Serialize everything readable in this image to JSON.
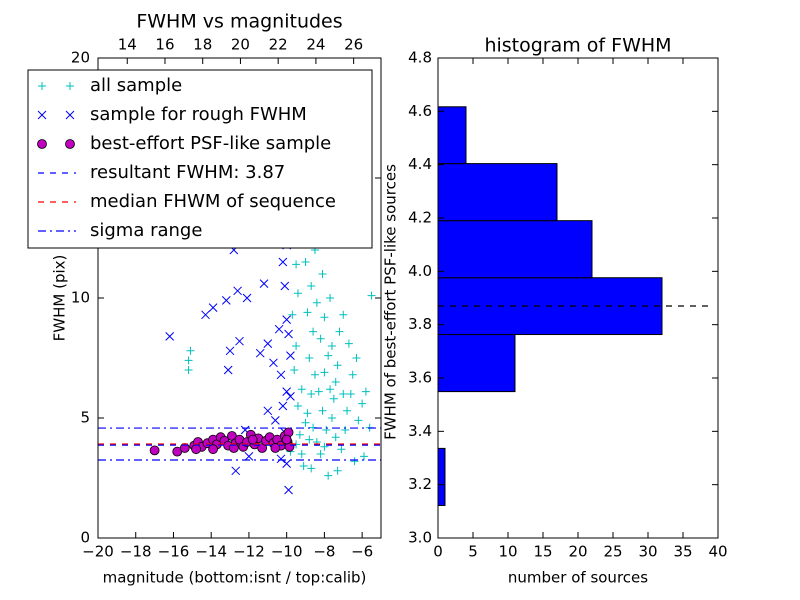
{
  "chart_data": [
    {
      "type": "scatter",
      "title": "FWHM vs magnitudes",
      "x_label": "magnitude (bottom:isnt / top:calib)",
      "y_label": "FWHM (pix)",
      "xlim": [
        -20,
        -5
      ],
      "xticks": [
        {
          "value": -20,
          "label": "−20"
        },
        {
          "value": -18,
          "label": "−18"
        },
        {
          "value": -16,
          "label": "−16"
        },
        {
          "value": -14,
          "label": "−14"
        },
        {
          "value": -12,
          "label": "−12"
        },
        {
          "value": -10,
          "label": "−10"
        },
        {
          "value": -8,
          "label": "−8"
        },
        {
          "value": -6,
          "label": "−6"
        }
      ],
      "x2lim": [
        12.45,
        27.45
      ],
      "x2ticks": [
        14,
        16,
        18,
        20,
        22,
        24,
        26
      ],
      "ylim": [
        0,
        20
      ],
      "yticks": [
        0,
        5,
        10,
        15,
        20
      ],
      "legend": "upper left",
      "series": [
        {
          "name": "all sample",
          "color": "#00bfbf",
          "marker": "+",
          "x": [
            -15.2,
            -15.2,
            -15.1,
            -5.5,
            -9.8,
            -9.5,
            -9.3,
            -9.0,
            -9.4,
            -9.2,
            -9.6,
            -9.5,
            -9.7,
            -9.4,
            -9.5,
            -9.3,
            -9.0,
            -9.6,
            -8.8,
            -8.5,
            -8.7,
            -8.9,
            -8.6,
            -8.8,
            -8.5,
            -8.7,
            -8.9,
            -8.6,
            -8.4,
            -8.2,
            -8.0,
            -7.9,
            -8.1,
            -8.3,
            -8.0,
            -7.8,
            -8.2,
            -8.0,
            -7.7,
            -8.1,
            -7.9,
            -8.3,
            -7.6,
            -7.5,
            -7.4,
            -7.3,
            -7.6,
            -7.2,
            -7.0,
            -7.4,
            -7.1,
            -6.9,
            -6.8,
            -6.6,
            -6.5,
            -6.3,
            -6.7,
            -6.2,
            -6.0,
            -5.8,
            -5.6,
            -5.9,
            -6.4,
            -7.8,
            -7.3,
            -9.1,
            -8.7,
            -8.3,
            -7.9,
            -9.0,
            -8.4,
            -7.7,
            -7.0,
            -8.8,
            -9.2
          ],
          "y": [
            7.0,
            7.4,
            7.8,
            10.1,
            3.6,
            3.9,
            4.3,
            4.8,
            5.5,
            6.2,
            7.0,
            8.0,
            9.3,
            10.2,
            11.4,
            12.6,
            13.8,
            14.6,
            15.2,
            12.0,
            10.5,
            9.4,
            8.6,
            7.5,
            6.8,
            6.0,
            5.2,
            4.6,
            4.0,
            3.5,
            3.8,
            4.5,
            5.3,
            6.1,
            6.9,
            7.6,
            8.3,
            9.2,
            10.0,
            11.0,
            12.4,
            13.1,
            5.0,
            5.8,
            6.5,
            7.2,
            8.0,
            8.6,
            9.3,
            4.2,
            3.7,
            4.5,
            5.3,
            6.0,
            6.8,
            7.5,
            8.1,
            4.9,
            5.6,
            6.1,
            4.6,
            3.4,
            3.2,
            2.6,
            2.8,
            3.0,
            2.9,
            14.2,
            15.5,
            11.5,
            9.8,
            6.2,
            6.0,
            4.1,
            3.5
          ]
        },
        {
          "name": "sample for rough FWHM",
          "color": "#0000ff",
          "marker": "x",
          "x": [
            -16.2,
            -14.3,
            -13.9,
            -13.2,
            -12.6,
            -12.1,
            -11.2,
            -10.8,
            -10.4,
            -10.2,
            -13.1,
            -13.0,
            -12.5,
            -11.4,
            -11.0,
            -10.7,
            -10.3,
            -10.0,
            -9.9,
            -10.0,
            -10.2,
            -11.0,
            -10.6,
            -9.8,
            -10.1,
            -12.7,
            -9.9,
            -10.3,
            -10.0,
            -12.2,
            -12.0,
            -9.8,
            -10.1,
            -10.4,
            -12.8,
            -10.0
          ],
          "y": [
            8.4,
            9.3,
            9.6,
            9.9,
            10.3,
            10.0,
            10.6,
            12.5,
            13.0,
            11.5,
            7.0,
            7.8,
            8.2,
            7.7,
            8.1,
            7.3,
            6.8,
            9.1,
            8.5,
            6.1,
            5.5,
            5.3,
            4.9,
            5.9,
            4.4,
            2.8,
            2.0,
            3.3,
            3.1,
            4.5,
            3.4,
            7.6,
            10.5,
            8.7,
            12.0,
            12.2
          ]
        },
        {
          "name": "best-effort PSF-like sample",
          "color": "#bf00bf",
          "marker": "o",
          "x": [
            -17.0,
            -15.8,
            -15.4,
            -14.9,
            -14.7,
            -14.5,
            -14.2,
            -13.9,
            -13.7,
            -13.5,
            -13.3,
            -13.1,
            -12.9,
            -12.7,
            -12.5,
            -12.3,
            -12.1,
            -11.9,
            -11.7,
            -11.5,
            -11.3,
            -11.1,
            -10.9,
            -10.7,
            -10.5,
            -10.3,
            -10.1,
            -9.95,
            -9.9,
            -9.85,
            -10.0,
            -13.9,
            -12.8,
            -11.8,
            -10.6,
            -14.8
          ],
          "y": [
            3.65,
            3.6,
            3.75,
            3.85,
            4.0,
            3.8,
            3.95,
            4.1,
            3.9,
            4.2,
            4.05,
            3.85,
            4.25,
            3.95,
            4.1,
            3.8,
            4.0,
            4.3,
            3.9,
            4.15,
            3.75,
            4.05,
            4.2,
            3.95,
            4.1,
            3.85,
            4.25,
            4.0,
            4.4,
            3.8,
            4.1,
            3.7,
            3.75,
            4.1,
            3.75,
            3.7
          ]
        }
      ],
      "lines": [
        {
          "name": "resultant FWHM: 3.87",
          "color": "#0000ff",
          "style": "dashed",
          "values": [
            3.87
          ]
        },
        {
          "name": "median FHWM of sequence",
          "color": "#ff0000",
          "style": "dashed",
          "values": [
            3.92
          ]
        },
        {
          "name": "sigma range",
          "color": "#0000ff",
          "style": "dashdot",
          "values": [
            4.58,
            3.25
          ]
        }
      ]
    },
    {
      "type": "histogram",
      "orientation": "horizontal",
      "title": "histogram of FWHM",
      "x_label": "number of sources",
      "y_label": "FWHM of best-effort PSF-like sources",
      "bins": [
        3.122,
        3.336,
        3.549,
        3.763,
        3.976,
        4.19,
        4.404,
        4.617
      ],
      "values": [
        1,
        0,
        11,
        32,
        22,
        17,
        4
      ],
      "color": "#0000ff",
      "xlim": [
        0,
        40
      ],
      "xticks": [
        0,
        5,
        10,
        15,
        20,
        25,
        30,
        35,
        40
      ],
      "ylim": [
        3.0,
        4.8
      ],
      "yticks": [
        {
          "value": 3.0,
          "label": "3.0"
        },
        {
          "value": 3.2,
          "label": "3.2"
        },
        {
          "value": 3.4,
          "label": "3.4"
        },
        {
          "value": 3.6,
          "label": "3.6"
        },
        {
          "value": 3.8,
          "label": "3.8"
        },
        {
          "value": 4.0,
          "label": "4.0"
        },
        {
          "value": 4.2,
          "label": "4.2"
        },
        {
          "value": 4.4,
          "label": "4.4"
        },
        {
          "value": 4.6,
          "label": "4.6"
        },
        {
          "value": 4.8,
          "label": "4.8"
        }
      ],
      "hline": {
        "value": 3.87,
        "color": "#000000",
        "style": "dashed"
      }
    }
  ]
}
